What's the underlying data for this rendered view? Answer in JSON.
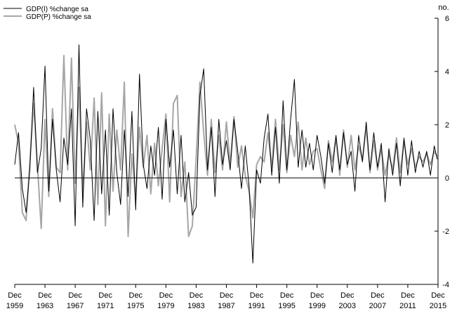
{
  "chart_data": {
    "type": "line",
    "unit_label": "no.",
    "ylim": [
      -4,
      6
    ],
    "y_ticks": [
      -4,
      -2,
      0,
      2,
      4,
      6
    ],
    "x_tick_labels": [
      {
        "line1": "Dec",
        "line2": "1959",
        "year": 1959
      },
      {
        "line1": "Dec",
        "line2": "1963",
        "year": 1963
      },
      {
        "line1": "Dec",
        "line2": "1967",
        "year": 1967
      },
      {
        "line1": "Dec",
        "line2": "1971",
        "year": 1971
      },
      {
        "line1": "Dec",
        "line2": "1975",
        "year": 1975
      },
      {
        "line1": "Dec",
        "line2": "1979",
        "year": 1979
      },
      {
        "line1": "Dec",
        "line2": "1983",
        "year": 1983
      },
      {
        "line1": "Dec",
        "line2": "1987",
        "year": 1987
      },
      {
        "line1": "Dec",
        "line2": "1991",
        "year": 1991
      },
      {
        "line1": "Dec",
        "line2": "1995",
        "year": 1995
      },
      {
        "line1": "Dec",
        "line2": "1999",
        "year": 1999
      },
      {
        "line1": "Dec",
        "line2": "2003",
        "year": 2003
      },
      {
        "line1": "Dec",
        "line2": "2007",
        "year": 2007
      },
      {
        "line1": "Dec",
        "line2": "2011",
        "year": 2011
      },
      {
        "line1": "Dec",
        "line2": "2015",
        "year": 2015
      }
    ],
    "legend_position": "top-left",
    "grid": false,
    "series": [
      {
        "name": "GDP(I) %change sa",
        "color": "#000000",
        "points": [
          [
            1959.9,
            0.5
          ],
          [
            1960.4,
            1.7
          ],
          [
            1960.9,
            -0.4
          ],
          [
            1961.4,
            -1.3
          ],
          [
            1961.9,
            0.3
          ],
          [
            1962.4,
            3.4
          ],
          [
            1962.9,
            0.2
          ],
          [
            1963.4,
            1.1
          ],
          [
            1963.9,
            4.2
          ],
          [
            1964.4,
            -0.5
          ],
          [
            1964.9,
            2.2
          ],
          [
            1965.4,
            0.3
          ],
          [
            1965.9,
            -0.9
          ],
          [
            1966.4,
            1.5
          ],
          [
            1966.9,
            0.5
          ],
          [
            1967.4,
            2.6
          ],
          [
            1967.9,
            -1.8
          ],
          [
            1968.4,
            5.0
          ],
          [
            1968.9,
            -1.1
          ],
          [
            1969.4,
            2.6
          ],
          [
            1969.9,
            1.4
          ],
          [
            1970.4,
            -1.6
          ],
          [
            1970.9,
            2.5
          ],
          [
            1971.4,
            -0.6
          ],
          [
            1971.9,
            1.8
          ],
          [
            1972.4,
            -1.4
          ],
          [
            1972.9,
            2.6
          ],
          [
            1973.4,
            0.2
          ],
          [
            1973.9,
            -1.0
          ],
          [
            1974.4,
            1.8
          ],
          [
            1974.9,
            -0.7
          ],
          [
            1975.4,
            2.5
          ],
          [
            1975.9,
            -1.2
          ],
          [
            1976.4,
            3.9
          ],
          [
            1976.9,
            0.5
          ],
          [
            1977.4,
            -0.4
          ],
          [
            1977.9,
            1.2
          ],
          [
            1978.4,
            0.1
          ],
          [
            1978.9,
            1.9
          ],
          [
            1979.4,
            -0.8
          ],
          [
            1979.9,
            2.2
          ],
          [
            1980.4,
            0.4
          ],
          [
            1980.9,
            1.8
          ],
          [
            1981.4,
            -0.6
          ],
          [
            1981.9,
            1.6
          ],
          [
            1982.4,
            -0.9
          ],
          [
            1982.9,
            0.2
          ],
          [
            1983.4,
            -1.4
          ],
          [
            1983.9,
            -1.1
          ],
          [
            1984.4,
            3.1
          ],
          [
            1984.9,
            4.1
          ],
          [
            1985.4,
            0.3
          ],
          [
            1985.9,
            1.9
          ],
          [
            1986.4,
            -0.7
          ],
          [
            1986.9,
            2.2
          ],
          [
            1987.4,
            0.5
          ],
          [
            1987.9,
            1.4
          ],
          [
            1988.4,
            0.3
          ],
          [
            1988.9,
            2.2
          ],
          [
            1989.4,
            1.0
          ],
          [
            1989.9,
            -0.4
          ],
          [
            1990.4,
            1.2
          ],
          [
            1990.9,
            -0.3
          ],
          [
            1991.4,
            -3.2
          ],
          [
            1991.9,
            0.3
          ],
          [
            1992.4,
            -0.2
          ],
          [
            1992.9,
            1.5
          ],
          [
            1993.4,
            2.4
          ],
          [
            1993.9,
            0.1
          ],
          [
            1994.4,
            1.9
          ],
          [
            1994.9,
            -0.2
          ],
          [
            1995.4,
            2.9
          ],
          [
            1995.9,
            0.3
          ],
          [
            1996.4,
            2.2
          ],
          [
            1996.9,
            3.7
          ],
          [
            1997.4,
            0.4
          ],
          [
            1997.9,
            1.8
          ],
          [
            1998.4,
            0.4
          ],
          [
            1998.9,
            1.3
          ],
          [
            1999.4,
            0.3
          ],
          [
            1999.9,
            1.6
          ],
          [
            2000.4,
            0.8
          ],
          [
            2000.9,
            -0.2
          ],
          [
            2001.4,
            1.3
          ],
          [
            2001.9,
            0.2
          ],
          [
            2002.4,
            1.6
          ],
          [
            2002.9,
            0.3
          ],
          [
            2003.4,
            1.7
          ],
          [
            2003.9,
            0.5
          ],
          [
            2004.4,
            1.0
          ],
          [
            2004.9,
            -0.5
          ],
          [
            2005.4,
            1.6
          ],
          [
            2005.9,
            0.6
          ],
          [
            2006.4,
            2.1
          ],
          [
            2006.9,
            0.3
          ],
          [
            2007.4,
            1.7
          ],
          [
            2007.9,
            0.4
          ],
          [
            2008.4,
            1.3
          ],
          [
            2008.9,
            -0.9
          ],
          [
            2009.4,
            1.1
          ],
          [
            2009.9,
            0.1
          ],
          [
            2010.4,
            1.3
          ],
          [
            2010.9,
            -0.3
          ],
          [
            2011.4,
            1.5
          ],
          [
            2011.9,
            0.1
          ],
          [
            2012.4,
            1.4
          ],
          [
            2012.9,
            0.2
          ],
          [
            2013.4,
            1.0
          ],
          [
            2013.9,
            0.4
          ],
          [
            2014.4,
            1.0
          ],
          [
            2014.9,
            0.1
          ],
          [
            2015.4,
            1.2
          ],
          [
            2015.8,
            0.7
          ]
        ]
      },
      {
        "name": "GDP(P) %change sa",
        "color": "#a6a6a6",
        "points": [
          [
            1959.9,
            2.0
          ],
          [
            1960.4,
            1.3
          ],
          [
            1960.9,
            -1.3
          ],
          [
            1961.4,
            -1.6
          ],
          [
            1961.9,
            0.6
          ],
          [
            1962.4,
            2.8
          ],
          [
            1962.9,
            0.5
          ],
          [
            1963.4,
            -1.9
          ],
          [
            1963.9,
            2.2
          ],
          [
            1964.4,
            -0.7
          ],
          [
            1964.9,
            2.6
          ],
          [
            1965.4,
            0.4
          ],
          [
            1965.9,
            0.2
          ],
          [
            1966.4,
            4.6
          ],
          [
            1966.9,
            0.3
          ],
          [
            1967.4,
            4.5
          ],
          [
            1967.9,
            -0.2
          ],
          [
            1968.4,
            3.4
          ],
          [
            1968.9,
            -0.6
          ],
          [
            1969.4,
            2.1
          ],
          [
            1969.9,
            0.3
          ],
          [
            1970.4,
            3.0
          ],
          [
            1970.9,
            -1.0
          ],
          [
            1971.4,
            3.2
          ],
          [
            1971.9,
            -1.8
          ],
          [
            1972.4,
            2.4
          ],
          [
            1972.9,
            -0.5
          ],
          [
            1973.4,
            1.8
          ],
          [
            1973.9,
            0.3
          ],
          [
            1974.4,
            3.6
          ],
          [
            1974.9,
            -2.2
          ],
          [
            1975.4,
            0.9
          ],
          [
            1975.9,
            -0.8
          ],
          [
            1976.4,
            1.9
          ],
          [
            1976.9,
            0.4
          ],
          [
            1977.4,
            1.6
          ],
          [
            1977.9,
            -0.6
          ],
          [
            1978.4,
            1.3
          ],
          [
            1978.9,
            -0.3
          ],
          [
            1979.4,
            1.1
          ],
          [
            1979.9,
            2.4
          ],
          [
            1980.4,
            -0.9
          ],
          [
            1980.9,
            2.8
          ],
          [
            1981.4,
            3.1
          ],
          [
            1981.9,
            -0.7
          ],
          [
            1982.4,
            0.6
          ],
          [
            1982.9,
            -2.2
          ],
          [
            1983.4,
            -1.8
          ],
          [
            1983.9,
            0.7
          ],
          [
            1984.4,
            3.6
          ],
          [
            1984.9,
            1.7
          ],
          [
            1985.4,
            0.1
          ],
          [
            1985.9,
            2.2
          ],
          [
            1986.4,
            0.2
          ],
          [
            1986.9,
            1.6
          ],
          [
            1987.4,
            0.3
          ],
          [
            1987.9,
            2.1
          ],
          [
            1988.4,
            0.5
          ],
          [
            1988.9,
            2.3
          ],
          [
            1989.4,
            0.4
          ],
          [
            1989.9,
            1.2
          ],
          [
            1990.4,
            0.1
          ],
          [
            1990.9,
            -0.5
          ],
          [
            1991.4,
            -1.5
          ],
          [
            1991.9,
            0.5
          ],
          [
            1992.4,
            0.8
          ],
          [
            1992.9,
            0.6
          ],
          [
            1993.4,
            1.7
          ],
          [
            1993.9,
            0.4
          ],
          [
            1994.4,
            2.2
          ],
          [
            1994.9,
            0.3
          ],
          [
            1995.4,
            2.0
          ],
          [
            1995.9,
            0.2
          ],
          [
            1996.4,
            1.6
          ],
          [
            1996.9,
            0.8
          ],
          [
            1997.4,
            2.1
          ],
          [
            1997.9,
            0.3
          ],
          [
            1998.4,
            1.5
          ],
          [
            1998.9,
            0.5
          ],
          [
            1999.4,
            1.0
          ],
          [
            1999.9,
            1.1
          ],
          [
            2000.4,
            0.3
          ],
          [
            2000.9,
            -0.4
          ],
          [
            2001.4,
            1.4
          ],
          [
            2001.9,
            0.6
          ],
          [
            2002.4,
            1.5
          ],
          [
            2002.9,
            0.1
          ],
          [
            2003.4,
            1.8
          ],
          [
            2003.9,
            0.4
          ],
          [
            2004.4,
            1.6
          ],
          [
            2004.9,
            0.3
          ],
          [
            2005.4,
            1.2
          ],
          [
            2005.9,
            0.7
          ],
          [
            2006.4,
            1.9
          ],
          [
            2006.9,
            0.2
          ],
          [
            2007.4,
            1.4
          ],
          [
            2007.9,
            0.3
          ],
          [
            2008.4,
            1.1
          ],
          [
            2008.9,
            0.1
          ],
          [
            2009.4,
            0.9
          ],
          [
            2009.9,
            0.3
          ],
          [
            2010.4,
            1.5
          ],
          [
            2010.9,
            0.2
          ],
          [
            2011.4,
            1.4
          ],
          [
            2011.9,
            0.5
          ],
          [
            2012.4,
            1.1
          ],
          [
            2012.9,
            0.4
          ],
          [
            2013.4,
            0.8
          ],
          [
            2013.9,
            0.6
          ],
          [
            2014.4,
            0.9
          ],
          [
            2014.9,
            0.5
          ],
          [
            2015.4,
            1.0
          ],
          [
            2015.8,
            0.8
          ]
        ]
      }
    ]
  }
}
